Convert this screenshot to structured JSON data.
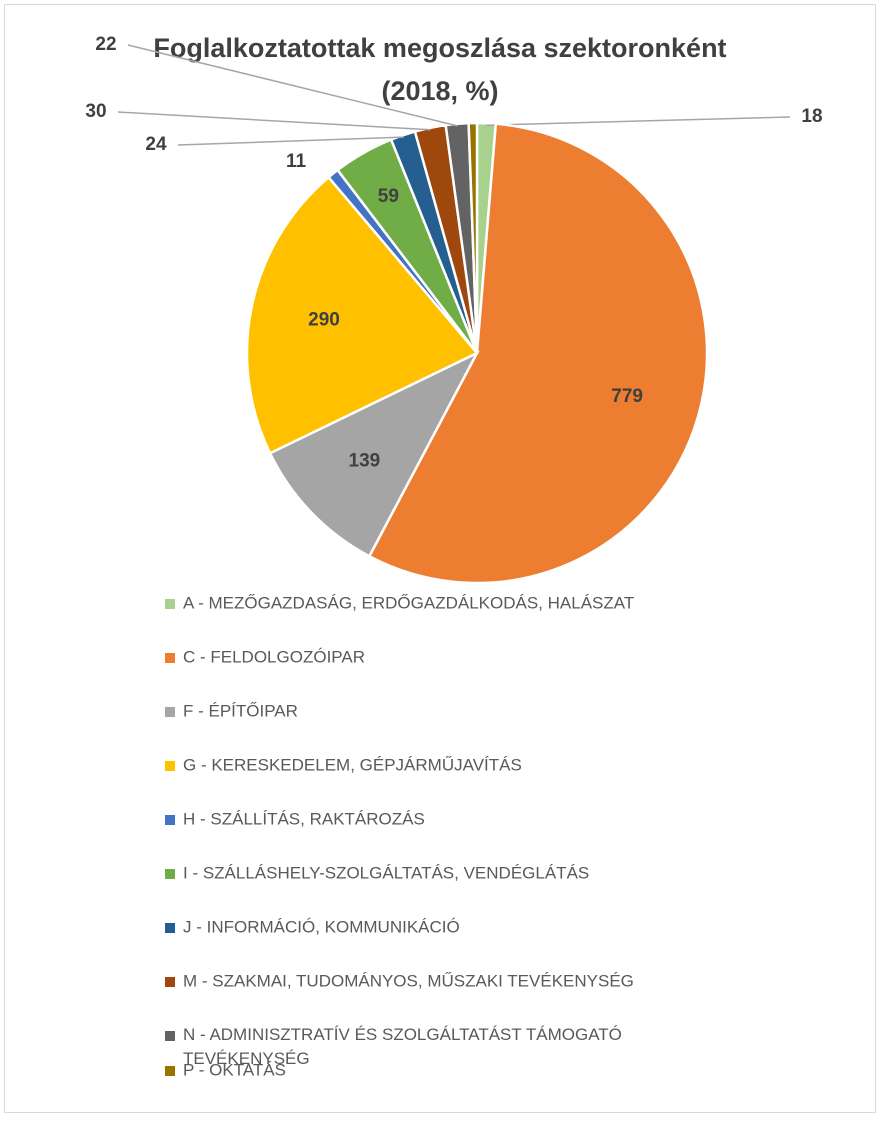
{
  "chart_data": {
    "type": "pie",
    "title": "Foglalkoztatottak megoszlása szektoronként (2018, %)",
    "categories": [
      "A - MEZŐGAZDASÁG, ERDŐGAZDÁLKODÁS, HALÁSZAT",
      "C - FELDOLGOZÓIPAR",
      "F - ÉPÍTŐIPAR",
      "G - KERESKEDELEM, GÉPJÁRMŰJAVÍTÁS",
      "H - SZÁLLÍTÁS, RAKTÁROZÁS",
      "I - SZÁLLÁSHELY-SZOLGÁLTATÁS, VENDÉGLÁTÁS",
      "J - INFORMÁCIÓ, KOMMUNIKÁCIÓ",
      "M - SZAKMAI, TUDOMÁNYOS, MŰSZAKI TEVÉKENYSÉG",
      "N - ADMINISZTRATÍV ÉS SZOLGÁLTATÁST TÁMOGATÓ TEVÉKENYSÉG",
      "P - OKTATÁS"
    ],
    "values": [
      18,
      779,
      139,
      290,
      11,
      59,
      24,
      30,
      22,
      8
    ],
    "labeled": [
      true,
      true,
      true,
      true,
      true,
      true,
      true,
      true,
      true,
      false
    ],
    "colors": [
      "#a9d18e",
      "#ed7d31",
      "#a5a5a5",
      "#ffc000",
      "#4472c4",
      "#70ad47",
      "#255e91",
      "#9e480e",
      "#636363",
      "#997300"
    ],
    "legend": "bottom"
  }
}
